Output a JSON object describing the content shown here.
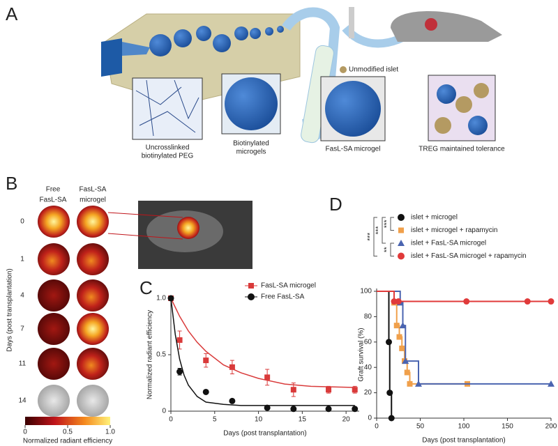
{
  "panel_a": {
    "label": "A",
    "captions": [
      [
        "Uncrosslinked",
        "biotinylated PEG"
      ],
      [
        "Biotinylated",
        "microgels"
      ],
      [
        "FasL-SA microgel"
      ],
      [
        "TREG maintained tolerance"
      ]
    ],
    "islet_label": "Unmodified islet"
  },
  "panel_b": {
    "label": "B",
    "columns": [
      [
        "Free",
        "FasL-SA"
      ],
      [
        "FasL-SA",
        "microgel"
      ]
    ],
    "rows": [
      "0",
      "1",
      "4",
      "7",
      "11",
      "14"
    ],
    "axis_label": "Days (post transplantation)",
    "colorbar": {
      "label": "Normalized radiant efficiency",
      "lim": [
        0,
        1
      ],
      "ticks": [
        0,
        0.5,
        {
          "value": 1,
          "label": "1.0"
        }
      ]
    }
  },
  "chart_data": [
    {
      "type": "scatter",
      "panel_label": "C",
      "xlabel": "Days (post transplantation)",
      "ylabel": "Normalized radiant efficiency",
      "xlim": [
        0,
        21.5
      ],
      "ylim": [
        0,
        1.0
      ],
      "xticks": [
        0,
        5,
        10,
        15,
        20
      ],
      "yticks": [
        0,
        0.5,
        {
          "value": 1,
          "label": "1.0"
        }
      ],
      "series": [
        {
          "name": "FasL-SA microgel",
          "color": "#d93a3a",
          "marker": "square",
          "x": [
            0,
            1,
            4,
            7,
            11,
            14,
            18,
            21
          ],
          "values": [
            1.0,
            0.63,
            0.45,
            0.39,
            0.3,
            0.19,
            0.19,
            0.19
          ],
          "errors": [
            0,
            0.08,
            0.06,
            0.06,
            0.07,
            0.06,
            0.03,
            0.03
          ],
          "fit": {
            "x": [
              0,
              1,
              2,
              3,
              4,
              6,
              8,
              10,
              13,
              16,
              21
            ],
            "values": [
              1.0,
              0.84,
              0.71,
              0.61,
              0.53,
              0.41,
              0.34,
              0.29,
              0.24,
              0.22,
              0.21
            ]
          }
        },
        {
          "name": "Free FasL-SA",
          "color": "#111111",
          "marker": "circle",
          "x": [
            0,
            1,
            4,
            7,
            11,
            14,
            18,
            21
          ],
          "values": [
            1.0,
            0.35,
            0.17,
            0.09,
            0.03,
            0.02,
            0.02,
            0.02
          ],
          "errors": [
            0,
            0.03,
            0,
            0,
            0,
            0,
            0,
            0
          ],
          "fit": {
            "x": [
              0,
              0.5,
              1,
              1.5,
              2,
              3,
              4,
              6,
              8,
              21
            ],
            "values": [
              1.0,
              0.68,
              0.46,
              0.32,
              0.23,
              0.13,
              0.08,
              0.06,
              0.05,
              0.05
            ]
          }
        }
      ]
    },
    {
      "type": "line",
      "steps": true,
      "panel_label": "D",
      "xlabel": "Days (post transplantation)",
      "ylabel": "Graft survival (%)",
      "xlim": [
        0,
        200
      ],
      "ylim": [
        0,
        100
      ],
      "xticks": [
        0,
        50,
        100,
        150,
        200
      ],
      "yticks": [
        0,
        20,
        40,
        60,
        80,
        100
      ],
      "significance": [
        "***",
        "***",
        "***",
        "**"
      ],
      "series": [
        {
          "name": "islet + microgel",
          "color": "#111111",
          "marker": "circle",
          "x": [
            0,
            14,
            15,
            17
          ],
          "values": [
            100,
            60,
            20,
            0
          ]
        },
        {
          "name": "islet + microgel + rapamycin",
          "color": "#f0a04b",
          "marker": "square",
          "x": [
            0,
            20,
            23,
            26,
            29,
            32,
            35,
            38,
            104
          ],
          "values": [
            100,
            91,
            73,
            64,
            55,
            45,
            36,
            27,
            27
          ]
        },
        {
          "name": "islet + FasL-SA microgel",
          "color": "#4a64b0",
          "marker": "triangle",
          "x": [
            0,
            27,
            30,
            33,
            48,
            200
          ],
          "values": [
            100,
            91,
            73,
            45,
            27,
            27
          ]
        },
        {
          "name": "islet + FasL-SA microgel + rapamycin",
          "color": "#e03a3a",
          "marker": "circle",
          "x": [
            0,
            20,
            25,
            103,
            173,
            200
          ],
          "values": [
            100,
            92,
            92,
            92,
            92,
            92
          ]
        }
      ]
    }
  ]
}
